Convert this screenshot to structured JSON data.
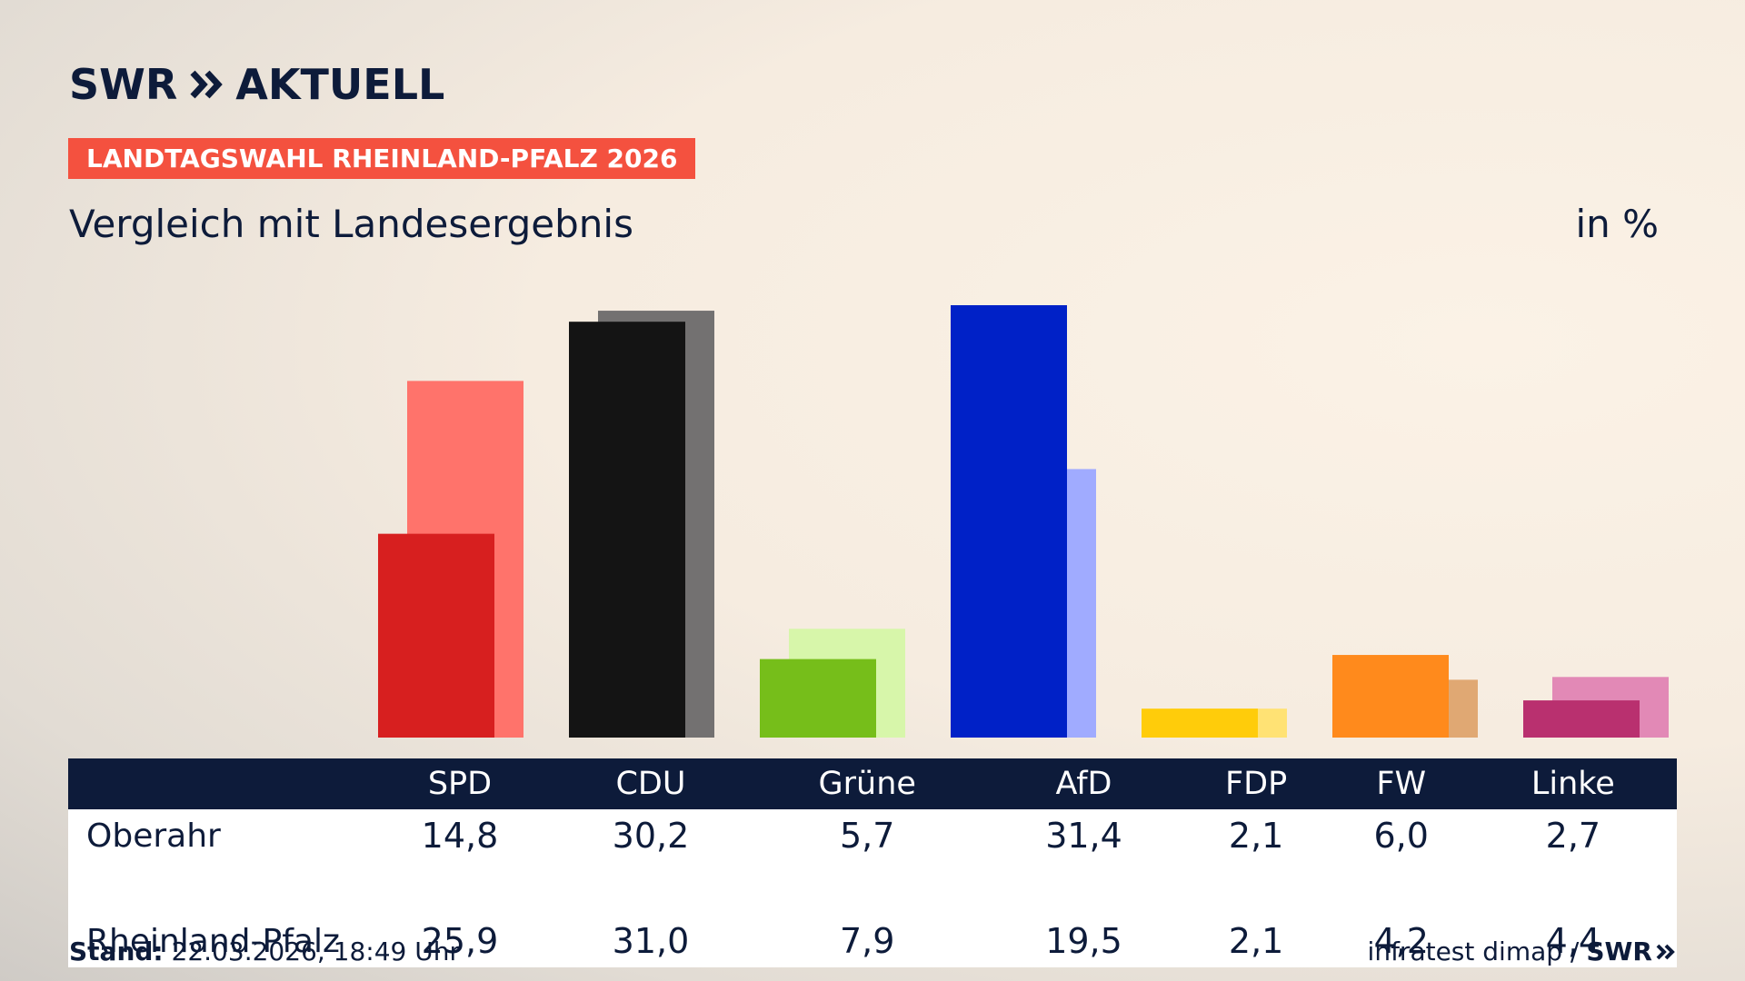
{
  "logo": {
    "brand": "SWR",
    "product": "AKTUELL"
  },
  "badge": "LANDTAGSWAHL RHEINLAND-PFALZ 2026",
  "subtitle": "Vergleich mit Landesergebnis",
  "unit_label": "in %",
  "colors": {
    "navy": "#0d1b3a",
    "badge": "#f4513f"
  },
  "chart_data": {
    "type": "bar",
    "categories": [
      "SPD",
      "CDU",
      "Grüne",
      "AfD",
      "FDP",
      "FW",
      "Linke"
    ],
    "series": [
      {
        "name": "Oberahr",
        "values": [
          14.8,
          30.2,
          5.7,
          31.4,
          2.1,
          6.0,
          2.7
        ],
        "colors": [
          "#d71f1f",
          "#141414",
          "#76be1a",
          "#0021c7",
          "#ffcc0a",
          "#ff8a1c",
          "#b9306f"
        ]
      },
      {
        "name": "Rheinland-Pfalz",
        "values": [
          25.9,
          31.0,
          7.9,
          19.5,
          2.1,
          4.2,
          4.4
        ],
        "colors": [
          "#ff736b",
          "#737171",
          "#d7f6aa",
          "#a0abff",
          "#ffe274",
          "#e0a873",
          "#e289b6"
        ]
      }
    ],
    "ylim": [
      0,
      31.4
    ]
  },
  "table": {
    "rows": [
      {
        "label": "Oberahr",
        "values": [
          "14,8",
          "30,2",
          "5,7",
          "31,4",
          "2,1",
          "6,0",
          "2,7"
        ]
      },
      {
        "label": "Rheinland-Pfalz",
        "values": [
          "25,9",
          "31,0",
          "7,9",
          "19,5",
          "2,1",
          "4,2",
          "4,4"
        ]
      }
    ]
  },
  "footer": {
    "stand_label": "Stand:",
    "stand_value": "22.03.2026, 18:49 Uhr",
    "source": "infratest dimap /",
    "source_brand": "SWR"
  }
}
